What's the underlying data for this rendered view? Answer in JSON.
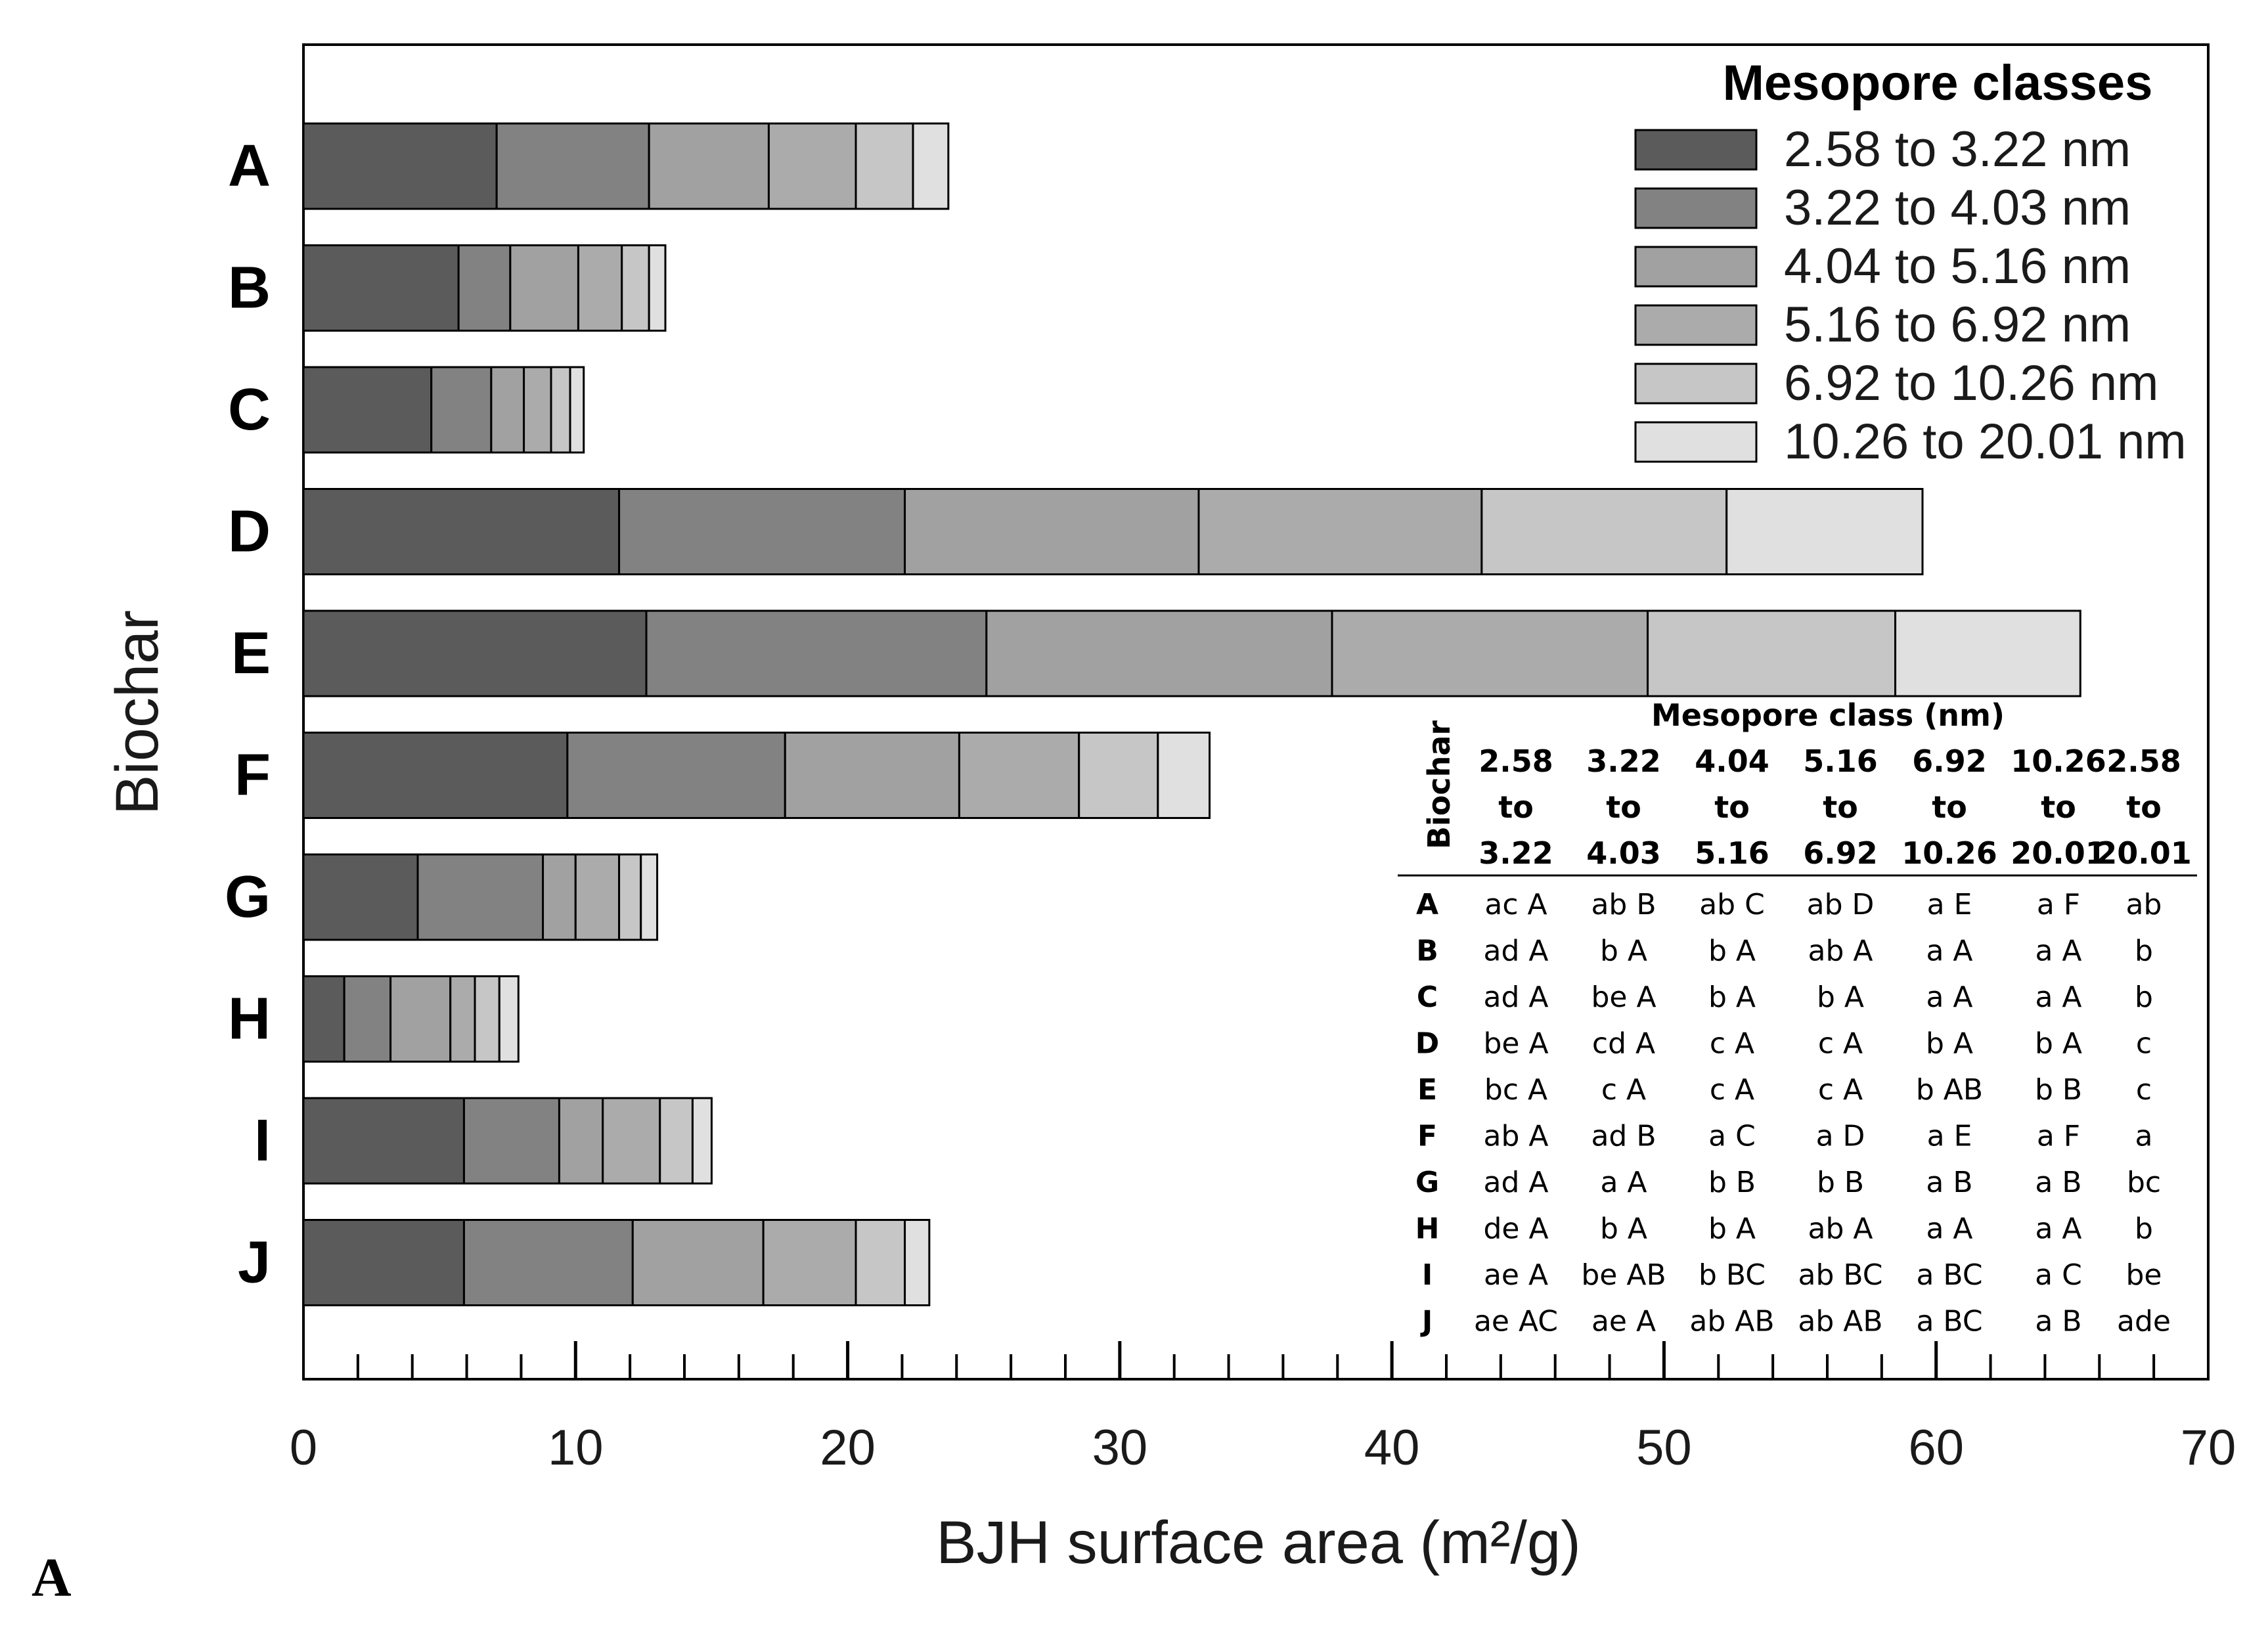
{
  "chart_data": {
    "type": "bar",
    "orientation": "horizontal",
    "stacked": true,
    "panel_label": "A",
    "xlabel": "BJH surface area (m²/g)",
    "ylabel": "Biochar",
    "xlim": [
      0,
      70
    ],
    "x_ticks": [
      "0",
      "10",
      "20",
      "30",
      "40",
      "50",
      "60",
      "70"
    ],
    "categories": [
      "A",
      "B",
      "C",
      "D",
      "E",
      "F",
      "G",
      "H",
      "I",
      "J"
    ],
    "legend": {
      "title": "Mesopore classes",
      "position": "top-right"
    },
    "series": [
      {
        "name": "2.58 to 3.22 nm",
        "color": "#5b5b5b",
        "values": [
          7.1,
          5.7,
          4.7,
          11.6,
          12.6,
          9.7,
          4.2,
          1.5,
          5.9,
          5.9
        ]
      },
      {
        "name": "3.22 to 4.03 nm",
        "color": "#828282",
        "values": [
          5.6,
          1.9,
          2.2,
          10.5,
          12.5,
          8.0,
          4.6,
          1.7,
          3.5,
          6.2
        ]
      },
      {
        "name": "4.04 to 5.16 nm",
        "color": "#a1a1a1",
        "values": [
          4.4,
          2.5,
          1.2,
          10.8,
          12.7,
          6.4,
          1.2,
          2.2,
          1.6,
          4.8
        ]
      },
      {
        "name": "5.16 to 6.92 nm",
        "color": "#ababab",
        "values": [
          3.2,
          1.6,
          1.0,
          10.4,
          11.6,
          4.4,
          1.6,
          0.9,
          2.1,
          3.4
        ]
      },
      {
        "name": "6.92 to 10.26 nm",
        "color": "#c6c6c6",
        "values": [
          2.1,
          1.0,
          0.7,
          9.0,
          9.1,
          2.9,
          0.8,
          0.9,
          1.2,
          1.8
        ]
      },
      {
        "name": "10.26 to 20.01 nm",
        "color": "#e0e0e0",
        "values": [
          1.3,
          0.6,
          0.5,
          7.2,
          6.8,
          1.9,
          0.6,
          0.7,
          0.7,
          0.9
        ]
      }
    ],
    "annotation_table": {
      "title": "Mesopore class (nm)",
      "row_header": "Biochar",
      "columns": [
        [
          "2.58",
          "to",
          "3.22"
        ],
        [
          "3.22",
          "to",
          "4.03"
        ],
        [
          "4.04",
          "to",
          "5.16"
        ],
        [
          "5.16",
          "to",
          "6.92"
        ],
        [
          "6.92",
          "to",
          "10.26"
        ],
        [
          "10.26",
          "to",
          "20.01"
        ],
        [
          "2.58",
          "to",
          "20.01"
        ]
      ],
      "rows": [
        {
          "label": "A",
          "cells": [
            [
              "ac",
              "A"
            ],
            [
              "ab",
              "B"
            ],
            [
              "ab",
              "C"
            ],
            [
              "ab",
              "D"
            ],
            [
              "a",
              "E"
            ],
            [
              "a",
              "F"
            ],
            [
              "ab"
            ]
          ]
        },
        {
          "label": "B",
          "cells": [
            [
              "ad",
              "A"
            ],
            [
              "b",
              "A"
            ],
            [
              "b",
              "A"
            ],
            [
              "ab",
              "A"
            ],
            [
              "a",
              "A"
            ],
            [
              "a",
              "A"
            ],
            [
              "b"
            ]
          ]
        },
        {
          "label": "C",
          "cells": [
            [
              "ad",
              "A"
            ],
            [
              "be",
              "A"
            ],
            [
              "b",
              "A"
            ],
            [
              "b",
              "A"
            ],
            [
              "a",
              "A"
            ],
            [
              "a",
              "A"
            ],
            [
              "b"
            ]
          ]
        },
        {
          "label": "D",
          "cells": [
            [
              "be",
              "A"
            ],
            [
              "cd",
              "A"
            ],
            [
              "c",
              "A"
            ],
            [
              "c",
              "A"
            ],
            [
              "b",
              "A"
            ],
            [
              "b",
              "A"
            ],
            [
              "c"
            ]
          ]
        },
        {
          "label": "E",
          "cells": [
            [
              "bc",
              "A"
            ],
            [
              "c",
              "A"
            ],
            [
              "c",
              "A"
            ],
            [
              "c",
              "A"
            ],
            [
              "b",
              "AB"
            ],
            [
              "b",
              "B"
            ],
            [
              "c"
            ]
          ]
        },
        {
          "label": "F",
          "cells": [
            [
              "ab",
              "A"
            ],
            [
              "ad",
              "B"
            ],
            [
              "a",
              "C"
            ],
            [
              "a",
              "D"
            ],
            [
              "a",
              "E"
            ],
            [
              "a",
              "F"
            ],
            [
              "a"
            ]
          ]
        },
        {
          "label": "G",
          "cells": [
            [
              "ad",
              "A"
            ],
            [
              "a",
              "A"
            ],
            [
              "b",
              "B"
            ],
            [
              "b",
              "B"
            ],
            [
              "a",
              "B"
            ],
            [
              "a",
              "B"
            ],
            [
              "bc"
            ]
          ]
        },
        {
          "label": "H",
          "cells": [
            [
              "de",
              "A"
            ],
            [
              "b",
              "A"
            ],
            [
              "b",
              "A"
            ],
            [
              "ab",
              "A"
            ],
            [
              "a",
              "A"
            ],
            [
              "a",
              "A"
            ],
            [
              "b"
            ]
          ]
        },
        {
          "label": "I",
          "cells": [
            [
              "ae",
              "A"
            ],
            [
              "be",
              "AB"
            ],
            [
              "b",
              "BC"
            ],
            [
              "ab",
              "BC"
            ],
            [
              "a",
              "BC"
            ],
            [
              "a",
              "C"
            ],
            [
              "be"
            ]
          ]
        },
        {
          "label": "J",
          "cells": [
            [
              "ae",
              "AC"
            ],
            [
              "ae",
              "A"
            ],
            [
              "ab",
              "AB"
            ],
            [
              "ab",
              "AB"
            ],
            [
              "a",
              "BC"
            ],
            [
              "a",
              "B"
            ],
            [
              "ade"
            ]
          ]
        }
      ]
    }
  }
}
